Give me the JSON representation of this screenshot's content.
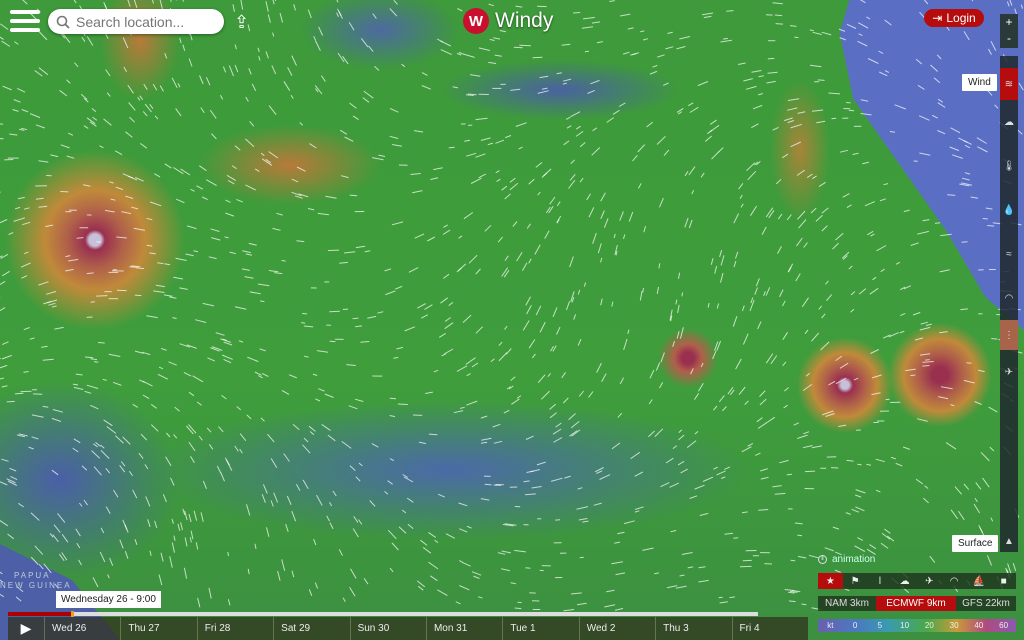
{
  "header": {
    "search_placeholder": "Search location...",
    "logo_text": "Windy",
    "login_label": "Login"
  },
  "zoom": {
    "plus": "+",
    "minus": "-"
  },
  "layers": {
    "active_tooltip": "Wind",
    "level_tooltip": "Surface",
    "items": [
      {
        "name": "wind",
        "icon": "wind-icon",
        "glyph": "≋"
      },
      {
        "name": "clouds",
        "icon": "cloud-icon",
        "glyph": "☁"
      },
      {
        "name": "temperature",
        "icon": "thermometer-icon",
        "glyph": "🌡"
      },
      {
        "name": "rain",
        "icon": "droplet-icon",
        "glyph": "💧"
      },
      {
        "name": "waves",
        "icon": "waves-icon",
        "glyph": "≈"
      },
      {
        "name": "pressure",
        "icon": "gauge-icon",
        "glyph": "◠"
      }
    ]
  },
  "map_labels": {
    "papua": "PAPUA",
    "new_guinea": "NEW GUINEA"
  },
  "animation_label": "animation",
  "overlay_icons": [
    {
      "icon": "star-icon",
      "glyph": "★"
    },
    {
      "icon": "kite-icon",
      "glyph": "⚑"
    },
    {
      "icon": "thermometer-icon",
      "glyph": "ǀ"
    },
    {
      "icon": "cloud-sun-icon",
      "glyph": "☁"
    },
    {
      "icon": "airplane-icon",
      "glyph": "✈"
    },
    {
      "icon": "paraglider-icon",
      "glyph": "◠"
    },
    {
      "icon": "surfer-icon",
      "glyph": "⛵"
    },
    {
      "icon": "camera-icon",
      "glyph": "■"
    }
  ],
  "models": [
    {
      "label": "NAM 3km",
      "active": false
    },
    {
      "label": "ECMWF 9km",
      "active": true
    },
    {
      "label": "GFS 22km",
      "active": false
    }
  ],
  "legend": {
    "unit": "kt",
    "values": [
      "0",
      "5",
      "10",
      "20",
      "30",
      "40",
      "60"
    ]
  },
  "timeline": {
    "current": "Wednesday 26 - 9:00",
    "progress_fraction": 0.085,
    "days": [
      "Wed 26",
      "Thu 27",
      "Fri 28",
      "Sat 29",
      "Sun 30",
      "Mon 31",
      "Tue 1",
      "Wed 2",
      "Thu 3",
      "Fri 4"
    ]
  },
  "colors": {
    "accent": "#b50d0d",
    "more_button": "#a8644a"
  }
}
